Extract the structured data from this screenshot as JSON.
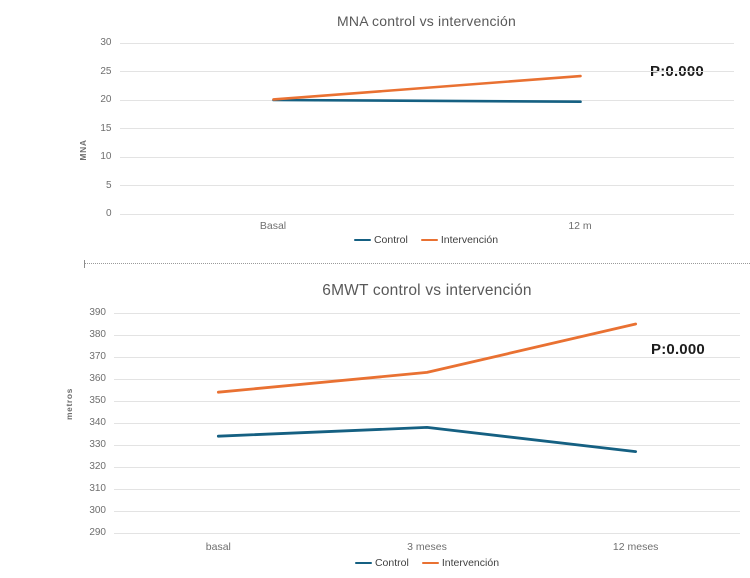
{
  "page": {
    "background": "#ffffff"
  },
  "colors": {
    "control": "#156082",
    "intervencion": "#E97132",
    "gridline": "#e3e3e3",
    "tick_label": "#6f6f6f",
    "title": "#595959",
    "annotation": "#1c1c1c"
  },
  "chart_data": [
    {
      "type": "line",
      "title": "MNA control vs intervención",
      "ylabel": "MNA",
      "annotation": "P:0.000",
      "categories": [
        "Basal",
        "12 m"
      ],
      "series": [
        {
          "name": "Control",
          "values": [
            20,
            19.7
          ],
          "color": "#156082"
        },
        {
          "name": "Intervención",
          "values": [
            20.1,
            24.2
          ],
          "color": "#E97132"
        }
      ],
      "ylim": [
        0,
        30
      ],
      "ytick_step": 5,
      "grid": true,
      "legend_position": "bottom"
    },
    {
      "type": "line",
      "title": "6MWT control vs intervención",
      "ylabel": "metros",
      "annotation": "P:0.000",
      "categories": [
        "basal",
        "3 meses",
        "12 meses"
      ],
      "series": [
        {
          "name": "Control",
          "values": [
            334,
            338,
            327
          ],
          "color": "#156082"
        },
        {
          "name": "Intervención",
          "values": [
            354,
            363,
            385
          ],
          "color": "#E97132"
        }
      ],
      "ylim": [
        290,
        390
      ],
      "ytick_step": 10,
      "grid": true,
      "legend_position": "bottom"
    }
  ]
}
